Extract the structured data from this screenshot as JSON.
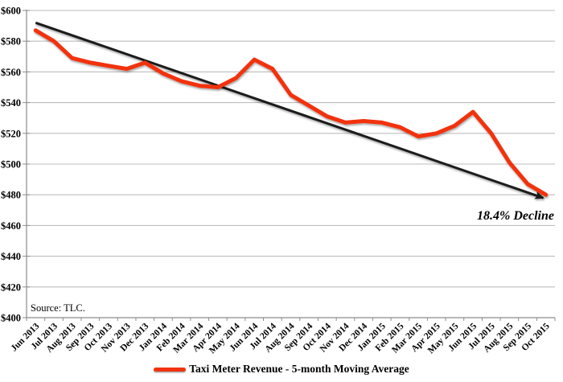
{
  "chart_data": {
    "type": "line",
    "categories": [
      "Jun 2013",
      "Jul 2013",
      "Aug 2013",
      "Sep 2013",
      "Oct 2013",
      "Nov 2013",
      "Dec 2013",
      "Jan 2014",
      "Feb 2014",
      "Mar 2014",
      "Apr 2014",
      "May 2014",
      "Jun 2014",
      "Jul 2014",
      "Aug 2014",
      "Sep 2014",
      "Oct 2014",
      "Nov 2014",
      "Dec 2014",
      "Jan 2015",
      "Feb 2015",
      "Mar 2015",
      "Apr 2015",
      "May 2015",
      "Jun 2015",
      "Jul 2015",
      "Aug 2015",
      "Sep 2015",
      "Oct 2015"
    ],
    "series": [
      {
        "name": "Taxi Meter Revenue - 5-month Moving Average",
        "color": "#f2330f",
        "values": [
          587,
          580,
          569,
          566,
          564,
          562,
          566,
          559,
          554,
          551,
          550,
          556,
          568,
          562,
          545,
          538,
          531,
          527,
          528,
          527,
          524,
          518,
          520,
          525,
          534,
          520,
          501,
          487,
          480
        ]
      }
    ],
    "trend_arrow": {
      "color": "#1a1a1a",
      "label": "18.4% Decline",
      "start": {
        "index": 0,
        "value": 592
      },
      "end": {
        "index": 27.85,
        "value": 478
      }
    },
    "ylim": [
      400,
      600
    ],
    "y_tick_step": 20,
    "y_tick_labels": [
      "$400",
      "$420",
      "$440",
      "$460",
      "$480",
      "$500",
      "$520",
      "$540",
      "$560",
      "$580",
      "$600"
    ],
    "grid": true,
    "legend_position": "bottom",
    "source_note": "Source: TLC.",
    "colors": {
      "gridline": "#bdbdbd",
      "axis": "#8c8c8c",
      "text": "#000000"
    }
  }
}
